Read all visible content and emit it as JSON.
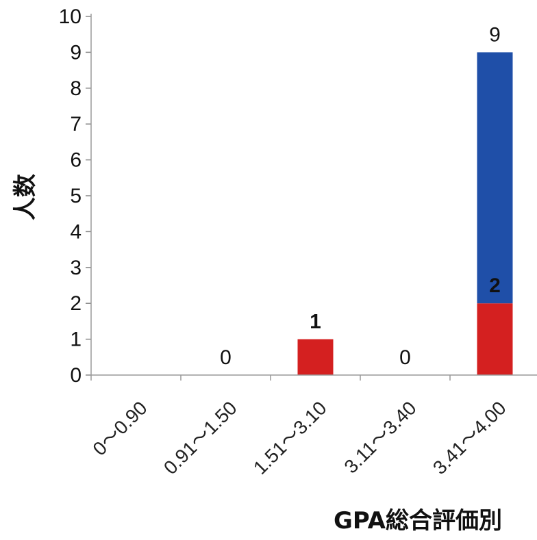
{
  "chart_data": {
    "type": "bar",
    "stacked": true,
    "xlabel": "GPA総合評価別",
    "ylabel": "人数",
    "ylim": [
      0,
      10
    ],
    "yticks": [
      0,
      1,
      2,
      3,
      4,
      5,
      6,
      7,
      8,
      9,
      10
    ],
    "grid": false,
    "categories": [
      "0～0.90",
      "0.91～1.50",
      "1.51～3.10",
      "3.11～3.40",
      "3.41～4.00"
    ],
    "series": [
      {
        "color": "#d42020",
        "values": [
          0,
          0,
          1,
          0,
          2
        ]
      },
      {
        "color": "#1f4fa8",
        "values": [
          0,
          0,
          0,
          0,
          7
        ]
      }
    ],
    "data_labels": [
      {
        "category_index": 1,
        "text": "0",
        "value": 0,
        "bold": false
      },
      {
        "category_index": 2,
        "text": "1",
        "value": 1,
        "bold": true
      },
      {
        "category_index": 3,
        "text": "0",
        "value": 0,
        "bold": false
      },
      {
        "category_index": 4,
        "text": "2",
        "value": 2,
        "bold": true
      },
      {
        "category_index": 4,
        "text": "9",
        "value": 9,
        "bold": false
      }
    ]
  }
}
